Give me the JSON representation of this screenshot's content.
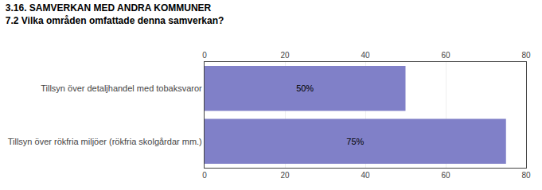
{
  "chart_data": {
    "type": "bar",
    "orientation": "horizontal",
    "title": "3.16. SAMVERKAN MED ANDRA KOMMUNER",
    "subtitle": "7.2 Vilka områden omfattade denna samverkan?",
    "categories": [
      "Tillsyn över detaljhandel med tobaksvaror",
      "Tillsyn över rökfria miljöer (rökfria skolgårdar mm.)"
    ],
    "values": [
      50,
      75
    ],
    "value_labels": [
      "50%",
      "75%"
    ],
    "data_labels": true,
    "color": "#8080c8",
    "xlim": [
      0,
      80
    ],
    "xticks": [
      0,
      20,
      40,
      60,
      80
    ],
    "grid": true
  }
}
